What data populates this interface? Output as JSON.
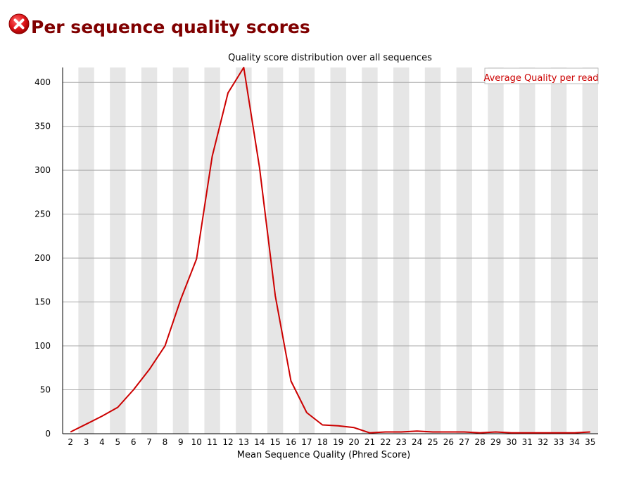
{
  "page": {
    "title": "Per sequence quality scores",
    "status_icon": "fail-cross-icon",
    "status_color": "#e0161b",
    "title_color": "#800000"
  },
  "chart_data": {
    "type": "line",
    "title": "Quality score distribution over all sequences",
    "xlabel": "Mean Sequence Quality (Phred Score)",
    "ylabel": "",
    "categories": [
      2,
      3,
      4,
      5,
      6,
      7,
      8,
      9,
      10,
      11,
      12,
      13,
      14,
      15,
      16,
      17,
      18,
      19,
      20,
      21,
      22,
      23,
      24,
      25,
      26,
      27,
      28,
      29,
      30,
      31,
      32,
      33,
      34,
      35
    ],
    "series": [
      {
        "name": "Average Quality per read",
        "color": "#cc0000",
        "values": [
          2,
          11,
          20,
          30,
          50,
          73,
          100,
          153,
          199,
          316,
          388,
          417,
          303,
          157,
          60,
          24,
          10,
          9,
          7,
          1,
          2,
          2,
          3,
          2,
          2,
          2,
          1,
          2,
          1,
          1,
          1,
          1,
          1,
          2
        ]
      }
    ],
    "yticks": [
      0,
      50,
      100,
      150,
      200,
      250,
      300,
      350,
      400
    ],
    "ylim": [
      0,
      417
    ],
    "grid": "horizontal",
    "band_color": "#e6e6e6",
    "legend_position": "top-right"
  }
}
